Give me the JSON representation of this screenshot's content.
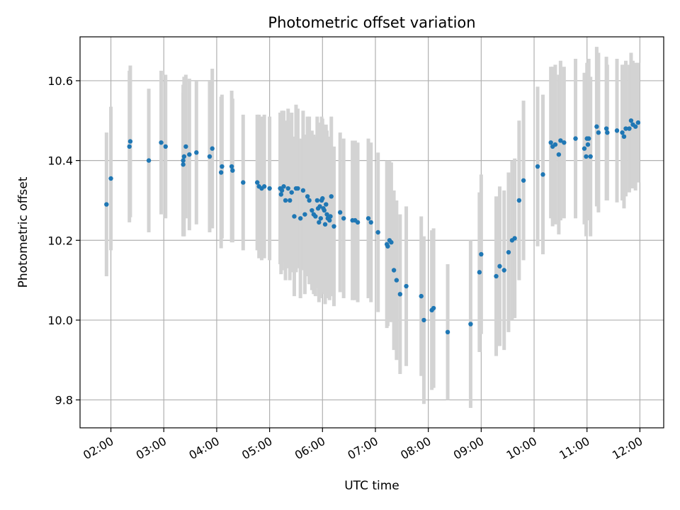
{
  "chart_data": {
    "type": "scatter",
    "title": "Photometric offset variation",
    "xlabel": "UTC time",
    "ylabel": "Photometric offset",
    "xlim": [
      "01:25",
      "12:27"
    ],
    "ylim": [
      9.73,
      10.71
    ],
    "x_ticks": [
      "02:00",
      "03:00",
      "04:00",
      "05:00",
      "06:00",
      "07:00",
      "08:00",
      "09:00",
      "10:00",
      "11:00",
      "12:00"
    ],
    "y_ticks": [
      9.8,
      10.0,
      10.2,
      10.4,
      10.6
    ],
    "grid": true,
    "colors": {
      "point": "#1f77b4",
      "errorbar": "#d3d3d3",
      "grid": "#b0b0b0"
    },
    "series": [
      {
        "x": [
          "01:55",
          "02:00",
          "02:21",
          "02:22",
          "02:43",
          "02:57",
          "03:02",
          "03:22",
          "03:22",
          "03:23",
          "03:25",
          "03:29",
          "03:37",
          "03:52",
          "03:55",
          "04:05",
          "04:06",
          "04:17",
          "04:18",
          "04:30",
          "04:46",
          "04:48",
          "04:51",
          "04:54",
          "05:00",
          "05:12",
          "05:13",
          "05:14",
          "05:16",
          "05:18",
          "05:21",
          "05:23",
          "05:25",
          "05:28",
          "05:30",
          "05:32",
          "05:35",
          "05:38",
          "05:40",
          "05:43",
          "05:45",
          "05:48",
          "05:50",
          "05:52",
          "05:54",
          "05:55",
          "05:56",
          "05:57",
          "05:58",
          "05:59",
          "06:00",
          "06:01",
          "06:02",
          "06:03",
          "06:04",
          "06:05",
          "06:06",
          "06:08",
          "06:09",
          "06:10",
          "06:13",
          "06:20",
          "06:24",
          "06:34",
          "06:37",
          "06:40",
          "06:52",
          "06:55",
          "07:03",
          "07:13",
          "07:14",
          "07:16",
          "07:18",
          "07:21",
          "07:24",
          "07:28",
          "07:35",
          "07:52",
          "07:55",
          "08:04",
          "08:06",
          "08:22",
          "08:48",
          "08:58",
          "09:00",
          "09:17",
          "09:21",
          "09:26",
          "09:31",
          "09:35",
          "09:38",
          "09:43",
          "09:48",
          "10:04",
          "10:10",
          "10:19",
          "10:21",
          "10:24",
          "10:28",
          "10:30",
          "10:34",
          "10:47",
          "10:57",
          "10:59",
          "11:00",
          "11:01",
          "11:02",
          "11:04",
          "11:11",
          "11:13",
          "11:22",
          "11:23",
          "11:34",
          "11:40",
          "11:42",
          "11:44",
          "11:48",
          "11:50",
          "11:52",
          "11:55",
          "11:58"
        ],
        "y": [
          10.29,
          10.355,
          10.435,
          10.448,
          10.4,
          10.445,
          10.435,
          10.39,
          10.4,
          10.41,
          10.435,
          10.415,
          10.42,
          10.41,
          10.43,
          10.37,
          10.385,
          10.385,
          10.375,
          10.345,
          10.345,
          10.335,
          10.33,
          10.335,
          10.33,
          10.33,
          10.315,
          10.325,
          10.335,
          10.3,
          10.33,
          10.3,
          10.32,
          10.26,
          10.33,
          10.33,
          10.255,
          10.325,
          10.265,
          10.31,
          10.3,
          10.275,
          10.265,
          10.26,
          10.3,
          10.28,
          10.245,
          10.285,
          10.255,
          10.3,
          10.305,
          10.28,
          10.275,
          10.24,
          10.29,
          10.265,
          10.255,
          10.25,
          10.26,
          10.31,
          10.235,
          10.27,
          10.255,
          10.25,
          10.25,
          10.245,
          10.255,
          10.245,
          10.22,
          10.19,
          10.185,
          10.2,
          10.195,
          10.125,
          10.1,
          10.065,
          10.085,
          10.06,
          10.0,
          10.025,
          10.03,
          9.97,
          9.99,
          10.12,
          10.165,
          10.11,
          10.135,
          10.125,
          10.17,
          10.2,
          10.205,
          10.3,
          10.35,
          10.385,
          10.365,
          10.445,
          10.435,
          10.44,
          10.415,
          10.45,
          10.445,
          10.455,
          10.43,
          10.41,
          10.455,
          10.44,
          10.455,
          10.41,
          10.485,
          10.47,
          10.48,
          10.47,
          10.475,
          10.47,
          10.46,
          10.48,
          10.48,
          10.5,
          10.49,
          10.485,
          10.495
        ],
        "error": [
          0.18,
          0.18,
          0.19,
          0.19,
          0.18,
          0.18,
          0.18,
          0.18,
          0.19,
          0.2,
          0.18,
          0.19,
          0.18,
          0.19,
          0.2,
          0.19,
          0.18,
          0.19,
          0.18,
          0.17,
          0.17,
          0.18,
          0.18,
          0.18,
          0.18,
          0.19,
          0.2,
          0.2,
          0.19,
          0.2,
          0.2,
          0.2,
          0.2,
          0.2,
          0.21,
          0.2,
          0.2,
          0.2,
          0.2,
          0.2,
          0.21,
          0.2,
          0.2,
          0.2,
          0.21,
          0.2,
          0.2,
          0.21,
          0.2,
          0.21,
          0.2,
          0.21,
          0.21,
          0.2,
          0.2,
          0.21,
          0.2,
          0.2,
          0.2,
          0.2,
          0.2,
          0.2,
          0.2,
          0.2,
          0.2,
          0.2,
          0.2,
          0.2,
          0.2,
          0.21,
          0.2,
          0.2,
          0.2,
          0.2,
          0.2,
          0.2,
          0.2,
          0.2,
          0.21,
          0.2,
          0.2,
          0.17,
          0.21,
          0.2,
          0.2,
          0.2,
          0.2,
          0.2,
          0.2,
          0.2,
          0.2,
          0.2,
          0.2,
          0.2,
          0.2,
          0.19,
          0.2,
          0.2,
          0.2,
          0.2,
          0.19,
          0.2,
          0.19,
          0.2,
          0.19,
          0.19,
          0.2,
          0.2,
          0.2,
          0.2,
          0.18,
          0.17,
          0.18,
          0.17,
          0.18,
          0.17,
          0.16,
          0.17,
          0.16,
          0.16,
          0.15
        ]
      }
    ]
  }
}
